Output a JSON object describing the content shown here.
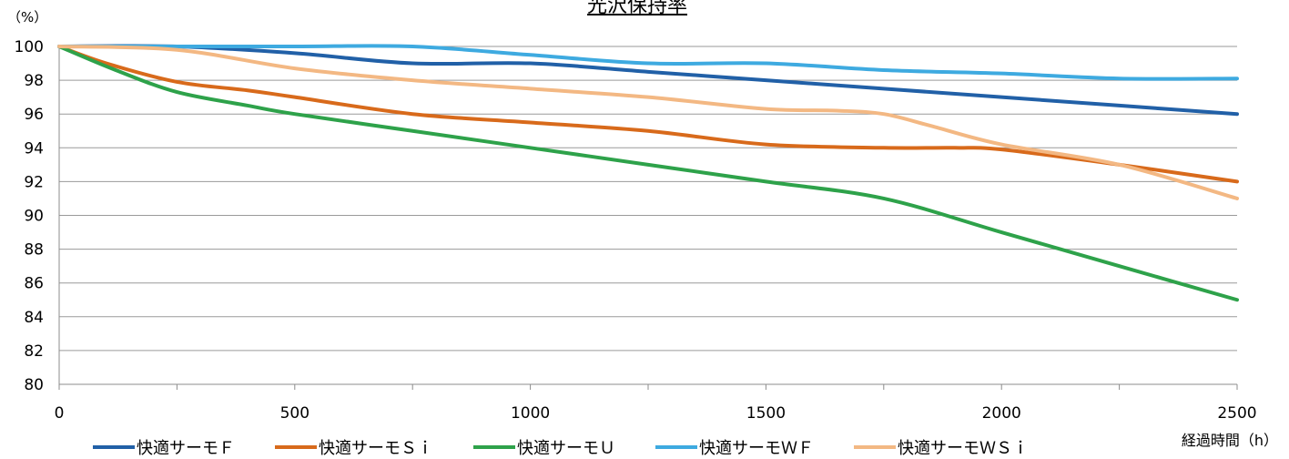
{
  "chart_data": {
    "type": "line",
    "title": "光沢保持率",
    "ylabel": "（%）",
    "xlabel": "経過時間（h）",
    "xlim": [
      0,
      2500
    ],
    "ylim": [
      80,
      100
    ],
    "x_ticks": [
      0,
      500,
      1000,
      1500,
      2000,
      2500
    ],
    "y_ticks": [
      80,
      82,
      84,
      86,
      88,
      90,
      92,
      94,
      96,
      98,
      100
    ],
    "grid": true,
    "legend_position": "bottom",
    "series": [
      {
        "name": "快適サーモＦ",
        "color": "#2160a7",
        "points": [
          [
            0,
            100
          ],
          [
            250,
            100
          ],
          [
            500,
            99.6
          ],
          [
            750,
            99
          ],
          [
            1000,
            99
          ],
          [
            1250,
            98.5
          ],
          [
            1500,
            98
          ],
          [
            1750,
            97.5
          ],
          [
            2000,
            97
          ],
          [
            2250,
            96.5
          ],
          [
            2500,
            96
          ]
        ]
      },
      {
        "name": "快適サーモＳｉ",
        "color": "#d86a1b",
        "points": [
          [
            0,
            100
          ],
          [
            100,
            99
          ],
          [
            250,
            97.9
          ],
          [
            400,
            97.4
          ],
          [
            500,
            97
          ],
          [
            750,
            96
          ],
          [
            1000,
            95.5
          ],
          [
            1250,
            95
          ],
          [
            1500,
            94.2
          ],
          [
            1750,
            94
          ],
          [
            1900,
            94
          ],
          [
            2000,
            93.9
          ],
          [
            2250,
            93
          ],
          [
            2500,
            92
          ]
        ]
      },
      {
        "name": "快適サーモＵ",
        "color": "#2ea24a",
        "points": [
          [
            0,
            100
          ],
          [
            120,
            98.6
          ],
          [
            250,
            97.3
          ],
          [
            400,
            96.5
          ],
          [
            500,
            96
          ],
          [
            750,
            95
          ],
          [
            1000,
            94
          ],
          [
            1250,
            93
          ],
          [
            1500,
            92
          ],
          [
            1750,
            91
          ],
          [
            2000,
            89
          ],
          [
            2250,
            87
          ],
          [
            2500,
            85
          ]
        ]
      },
      {
        "name": "快適サーモＷＦ",
        "color": "#3eaae0",
        "points": [
          [
            0,
            100
          ],
          [
            250,
            100
          ],
          [
            500,
            100
          ],
          [
            750,
            100
          ],
          [
            1000,
            99.5
          ],
          [
            1250,
            99
          ],
          [
            1500,
            99
          ],
          [
            1750,
            98.6
          ],
          [
            2000,
            98.4
          ],
          [
            2250,
            98.1
          ],
          [
            2500,
            98.1
          ]
        ]
      },
      {
        "name": "快適サーモＷＳｉ",
        "color": "#f3b883",
        "points": [
          [
            0,
            100
          ],
          [
            250,
            99.8
          ],
          [
            500,
            98.7
          ],
          [
            750,
            98
          ],
          [
            1000,
            97.5
          ],
          [
            1250,
            97
          ],
          [
            1500,
            96.3
          ],
          [
            1650,
            96.2
          ],
          [
            1750,
            96
          ],
          [
            1850,
            95.3
          ],
          [
            2000,
            94.2
          ],
          [
            2250,
            93
          ],
          [
            2500,
            91
          ]
        ]
      }
    ]
  }
}
